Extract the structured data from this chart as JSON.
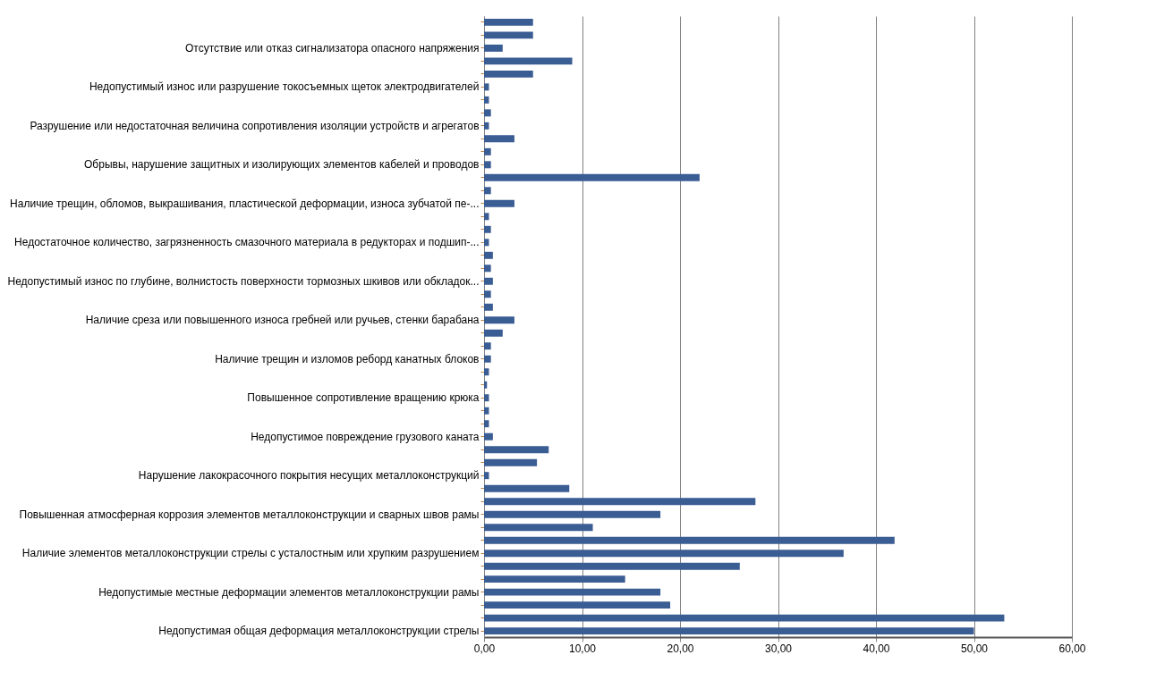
{
  "chart_data": {
    "type": "bar",
    "orientation": "horizontal",
    "color": "#3a5d94",
    "grid": "x",
    "categories": [
      null,
      null,
      "Отсутствие или отказ сигнализатора опасного напряжения",
      null,
      null,
      "Недопустимый износ или разрушение токосъемных щеток электродвигателей",
      null,
      null,
      "Разрушение или недостаточная величина сопротивления изоляции устройств и агрегатов",
      null,
      null,
      "Обрывы, нарушение защитных и изолирующих элементов кабелей и проводов",
      null,
      null,
      "Наличие трещин, обломов, выкрашивания, пластической деформации, износа зубчатой пе-...",
      null,
      null,
      "Недостаточное количество, загрязненность смазочного материала в редукторах и подшип-...",
      null,
      null,
      "Недопустимый износ по глубине, волнистость поверхности тормозных шкивов или обкладок...",
      null,
      null,
      "Наличие среза или повышенного износа гребней или ручьев, стенки барабана",
      null,
      null,
      "Наличие трещин и изломов реборд канатных блоков",
      null,
      null,
      "Повышенное сопротивление вращению крюка",
      null,
      null,
      "Недопустимое повреждение грузового каната",
      null,
      null,
      "Нарушение лакокрасочного покрытия несущих металлоконструкций",
      null,
      null,
      "Повышенная атмосферная коррозия элементов металлоконструкции и сварных швов рамы",
      null,
      null,
      "Наличие элементов металлоконструкции стрелы с усталостным или хрупким разрушением",
      null,
      null,
      "Недопустимые местные деформации элементов металлоконструкции рамы",
      null,
      null,
      "Недопустимая общая деформация металлоконструкции стрелы"
    ],
    "values": [
      5,
      5,
      1.9,
      9,
      5,
      0.5,
      0.5,
      0.7,
      0.5,
      3.1,
      0.7,
      0.7,
      22,
      0.7,
      3.1,
      0.5,
      0.7,
      0.5,
      0.9,
      0.7,
      0.9,
      0.7,
      0.9,
      3.1,
      1.9,
      0.7,
      0.7,
      0.5,
      0.3,
      0.5,
      0.5,
      0.5,
      0.9,
      6.6,
      5.4,
      0.5,
      8.7,
      27.7,
      18,
      11.1,
      41.9,
      36.7,
      26.1,
      14.4,
      18,
      19,
      53.1,
      50
    ],
    "xlim": [
      0,
      60
    ],
    "xticks": [
      {
        "value": 0,
        "label": "0,00"
      },
      {
        "value": 10,
        "label": "10,00"
      },
      {
        "value": 20,
        "label": "20,00"
      },
      {
        "value": 30,
        "label": "30,00"
      },
      {
        "value": 40,
        "label": "40,00"
      },
      {
        "value": 50,
        "label": "50,00"
      },
      {
        "value": 60,
        "label": "60,00"
      }
    ]
  }
}
